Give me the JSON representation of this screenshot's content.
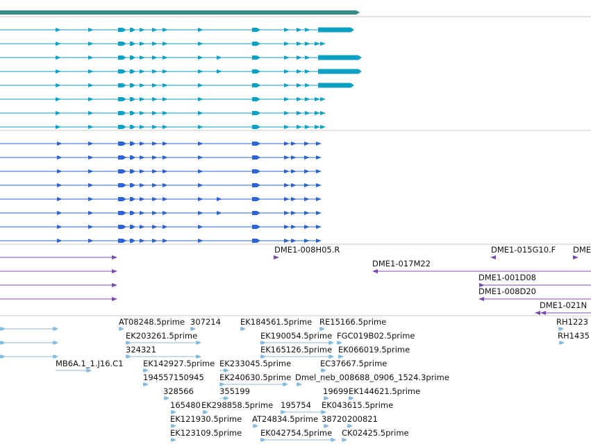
{
  "colors": {
    "top_bar": "#3a8a8c",
    "transcript_a": "#0aa1c4",
    "transcript_b": "#2c63d3",
    "cdna": "#7b49ad",
    "est": "#86bde0",
    "separator": "#c8c8c8"
  },
  "tracks": {
    "cdna_labels": [
      "DME1-008H05.R",
      "DME1-015G10.F",
      "DME",
      "DME1-017M22",
      "DME1-001D08",
      "DME1-008D20",
      "DME1-021N"
    ],
    "est_labels": [
      "AT08248.5prime",
      "307214",
      "EK184561.5prime",
      "RE15166.5prime",
      "RH1223",
      "EK203261.5prime",
      "EK190054.5prime",
      "FGC019B02.5prime",
      "RH1435",
      "324321",
      "EK165126.5prime",
      "EK066019.5prime",
      "MB6A.1_1.J16.C1",
      "EK142927.5prime",
      "EK233045.5prime",
      "EC37667.5prime",
      "194557150945",
      "EK240630.5prime",
      "Dmel_neb_008688_0906_1524.3prime",
      "328566",
      "355199",
      "19699",
      "EK144621.5prime",
      "165480",
      "EK298858.5prime",
      "195754",
      "EK043615.5prime",
      "EK121930.5prime",
      "AT24834.5prime",
      "38720",
      "200821",
      "EK123109.5prime",
      "EK042754.5prime",
      "CK02425.5prime"
    ]
  }
}
